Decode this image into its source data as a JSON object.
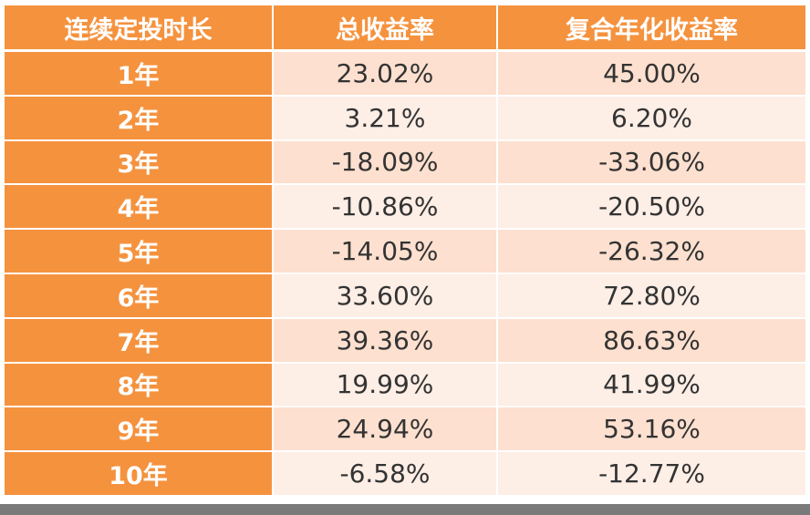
{
  "headers": [
    "连续定投时长",
    "总收益率",
    "复合年化收益率"
  ],
  "rows": [
    {
      "period": "1年",
      "total_return": "23.02%",
      "annualized_return": "45.00%"
    },
    {
      "period": "2年",
      "total_return": "3.21%",
      "annualized_return": "6.20%"
    },
    {
      "period": "3年",
      "total_return": "-18.09%",
      "annualized_return": "-33.06%"
    },
    {
      "period": "4年",
      "total_return": "-10.86%",
      "annualized_return": "-20.50%"
    },
    {
      "period": "5年",
      "total_return": "-14.05%",
      "annualized_return": "-26.32%"
    },
    {
      "period": "6年",
      "total_return": "33.60%",
      "annualized_return": "72.80%"
    },
    {
      "period": "7年",
      "total_return": "39.36%",
      "annualized_return": "86.63%"
    },
    {
      "period": "8年",
      "total_return": "19.99%",
      "annualized_return": "41.99%"
    },
    {
      "period": "9年",
      "total_return": "24.94%",
      "annualized_return": "53.16%"
    },
    {
      "period": "10年",
      "total_return": "-6.58%",
      "annualized_return": "-12.77%"
    }
  ],
  "colors": {
    "header": "#f5923e",
    "row_odd": "#fde0cf",
    "row_even": "#fdeee6",
    "bottom_bar": "#7a7a7a"
  }
}
